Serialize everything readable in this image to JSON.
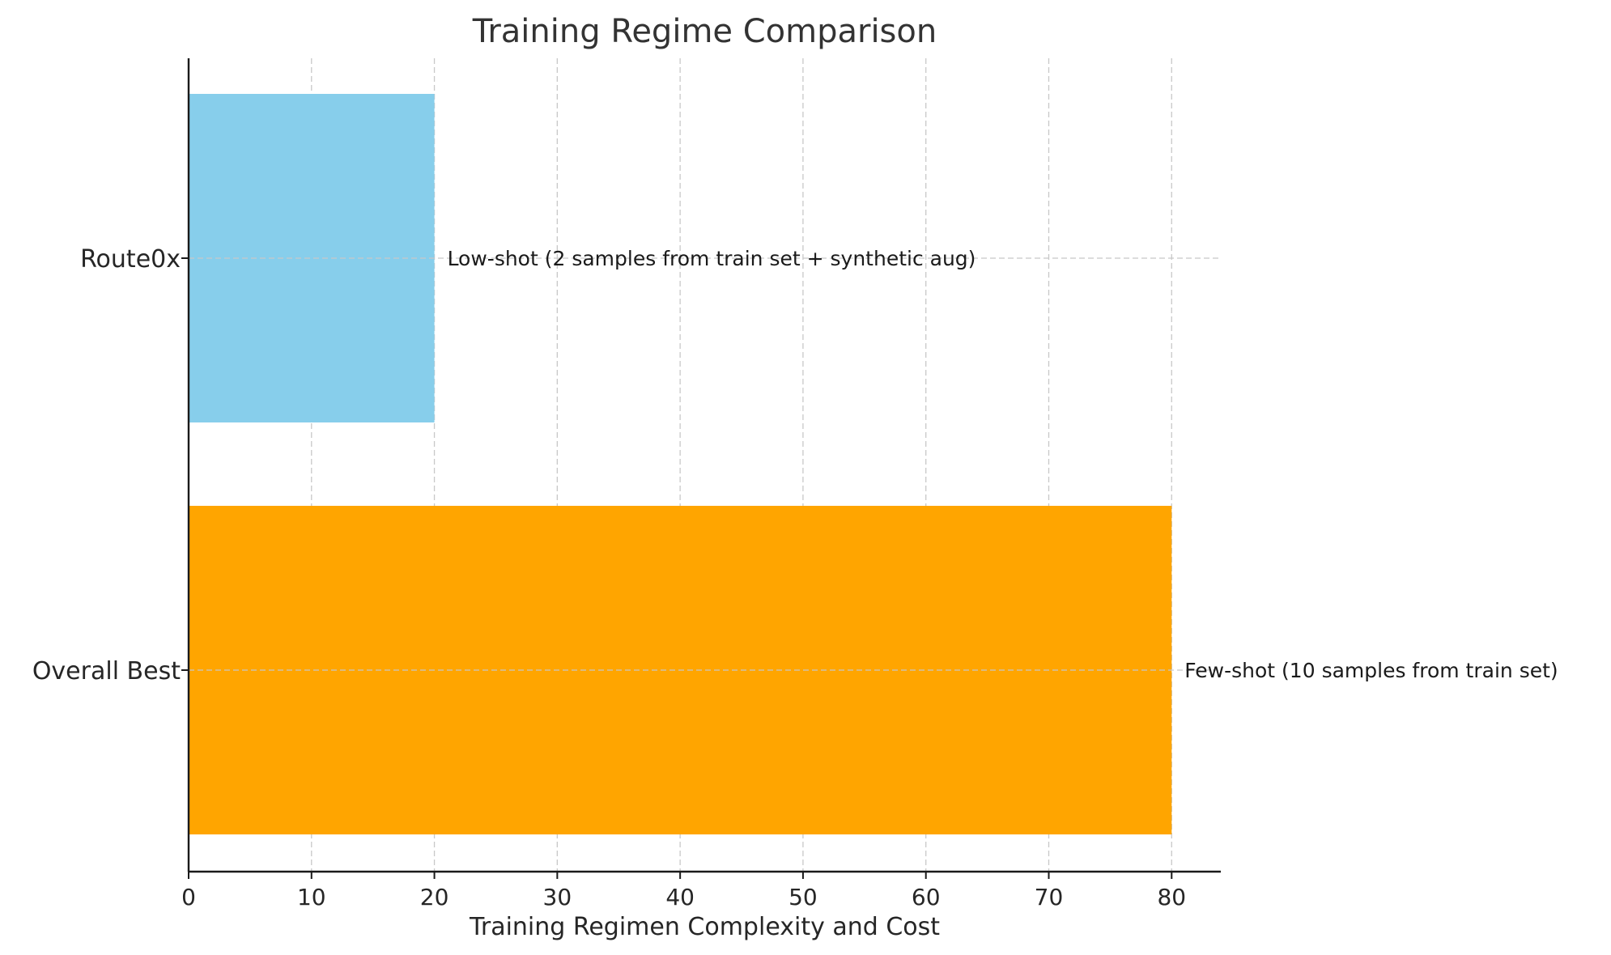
{
  "chart_data": {
    "type": "bar",
    "orientation": "horizontal",
    "title": "Training Regime Comparison",
    "xlabel": "Training Regimen Complexity and Cost",
    "ylabel": "",
    "xlim": [
      0,
      84
    ],
    "x_ticks": [
      0,
      10,
      20,
      30,
      40,
      50,
      60,
      70,
      80
    ],
    "grid": true,
    "categories": [
      "Route0x",
      "Overall Best"
    ],
    "values": [
      20,
      80
    ],
    "colors": [
      "#87CEEB",
      "#FFA500"
    ],
    "annotations": [
      "Low-shot (2 samples from train set + synthetic aug)",
      "Few-shot (10 samples from train set)"
    ]
  }
}
